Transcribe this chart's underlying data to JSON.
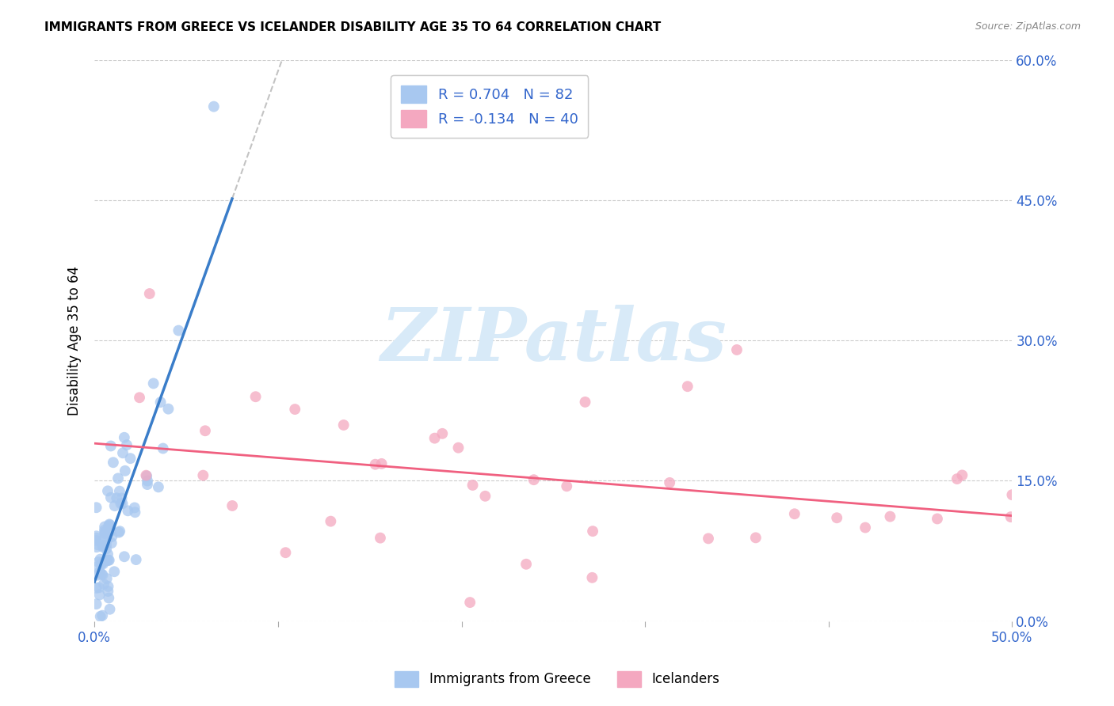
{
  "title": "IMMIGRANTS FROM GREECE VS ICELANDER DISABILITY AGE 35 TO 64 CORRELATION CHART",
  "source": "Source: ZipAtlas.com",
  "ylabel": "Disability Age 35 to 64",
  "ytick_labels": [
    "0.0%",
    "15.0%",
    "30.0%",
    "45.0%",
    "60.0%"
  ],
  "ytick_values": [
    0.0,
    0.15,
    0.3,
    0.45,
    0.6
  ],
  "xlim": [
    0.0,
    0.5
  ],
  "ylim": [
    0.0,
    0.6
  ],
  "greece_R": 0.704,
  "greece_N": 82,
  "iceland_R": -0.134,
  "iceland_N": 40,
  "greece_color": "#A8C8F0",
  "iceland_color": "#F4A8C0",
  "greece_line_color": "#3A7DC9",
  "iceland_line_color": "#F06080",
  "legend_label_greece": "Immigrants from Greece",
  "legend_label_iceland": "Icelanders",
  "watermark_text": "ZIPatlas",
  "watermark_color": "#D8EAF8"
}
